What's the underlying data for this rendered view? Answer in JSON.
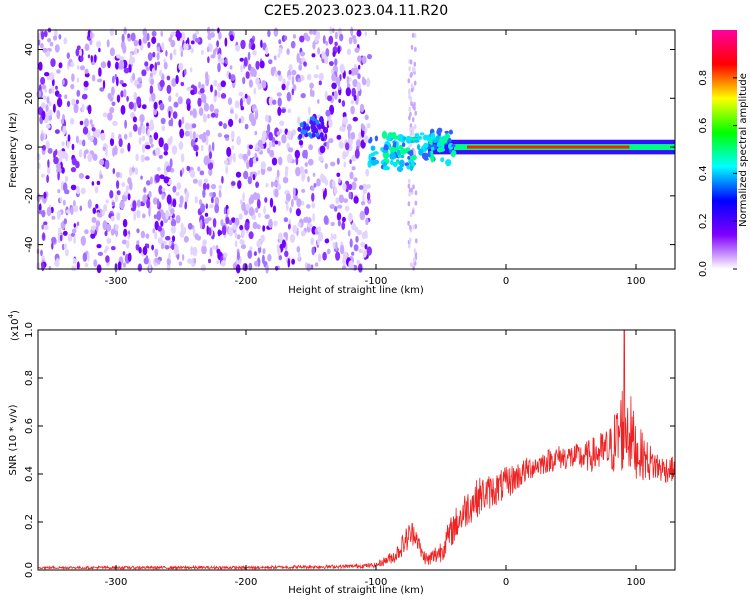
{
  "figure": {
    "title": "C2E5.2023.023.04.11.R20"
  },
  "chart_data": [
    {
      "type": "heatmap",
      "xlabel": "Height of straight line (km)",
      "ylabel": "Frequency (Hz)",
      "xlim": [
        -360,
        130
      ],
      "ylim": [
        -50,
        48
      ],
      "x_ticks": [
        "-300",
        "-200",
        "-100",
        "0",
        "100"
      ],
      "x_tick_values": [
        -300,
        -200,
        -100,
        0,
        100
      ],
      "y_ticks": [
        "40",
        "20",
        "0",
        "-20",
        "-40"
      ],
      "y_tick_values": [
        40,
        20,
        0,
        -20,
        -40
      ],
      "colorbar": {
        "label": "Normalized spectral amplitude",
        "range": [
          0,
          1
        ],
        "ticks": [
          "0.0",
          "0.2",
          "0.4",
          "0.6",
          "0.8"
        ],
        "tick_values": [
          0,
          0.2,
          0.4,
          0.6,
          0.8
        ],
        "colormap": [
          "#ffffff",
          "#7f00ff",
          "#0000ff",
          "#00ffff",
          "#00ff00",
          "#ffff00",
          "#ff0000",
          "#ff00a0"
        ]
      },
      "regions": [
        {
          "description": "noise",
          "x_range": [
            -360,
            -105
          ],
          "level": 0.15
        },
        {
          "description": "carrier",
          "x_range": [
            -105,
            130
          ],
          "center_hz": 0,
          "level": 0.9
        }
      ],
      "grid": false
    },
    {
      "type": "line",
      "xlabel": "Height of straight line (km)",
      "ylabel": "SNR (10 * v/v)",
      "multiplier_label": "(x10",
      "multiplier_exp": "4",
      "multiplier_close": ")",
      "xlim": [
        -360,
        130
      ],
      "ylim": [
        0,
        1.0
      ],
      "x_ticks": [
        "-300",
        "-200",
        "-100",
        "0",
        "100"
      ],
      "x_tick_values": [
        -300,
        -200,
        -100,
        0,
        100
      ],
      "y_ticks": [
        "0.0",
        "0.2",
        "0.4",
        "0.6",
        "0.8",
        "1.0"
      ],
      "y_tick_values": [
        0,
        0.2,
        0.4,
        0.6,
        0.8,
        1.0
      ],
      "color": "#ee2222",
      "series_envelope": {
        "x": [
          -360,
          -300,
          -200,
          -120,
          -100,
          -85,
          -75,
          -70,
          -65,
          -60,
          -50,
          -40,
          -30,
          -20,
          -10,
          0,
          20,
          40,
          60,
          80,
          85,
          90,
          92,
          95,
          100,
          110,
          120,
          130
        ],
        "y": [
          0.01,
          0.01,
          0.01,
          0.015,
          0.02,
          0.06,
          0.14,
          0.16,
          0.07,
          0.04,
          0.08,
          0.18,
          0.26,
          0.31,
          0.33,
          0.36,
          0.43,
          0.47,
          0.47,
          0.5,
          0.54,
          0.6,
          0.62,
          0.58,
          0.5,
          0.45,
          0.42,
          0.42
        ],
        "noise": [
          0.005,
          0.006,
          0.006,
          0.008,
          0.01,
          0.03,
          0.06,
          0.05,
          0.03,
          0.03,
          0.05,
          0.07,
          0.08,
          0.08,
          0.07,
          0.07,
          0.05,
          0.05,
          0.06,
          0.1,
          0.15,
          0.2,
          0.22,
          0.18,
          0.12,
          0.08,
          0.06,
          0.05
        ]
      },
      "peak": {
        "x": 91,
        "y": 1.0
      },
      "grid": false
    }
  ]
}
